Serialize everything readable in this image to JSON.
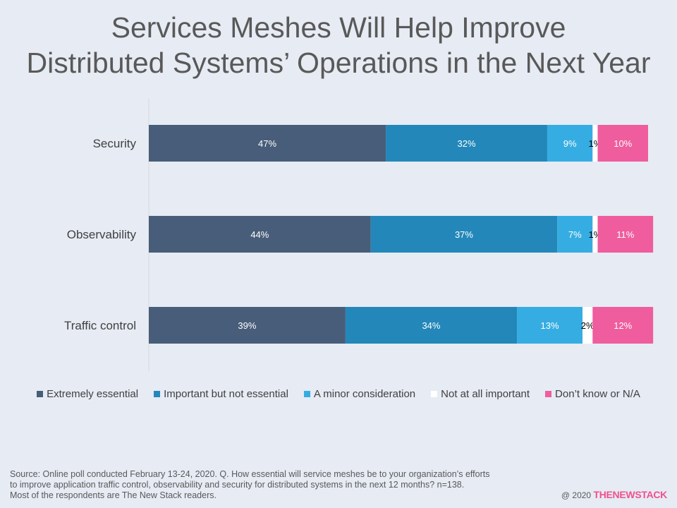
{
  "chart_data": {
    "type": "bar",
    "orientation": "horizontal",
    "stacked": true,
    "title_lines": [
      "Services Meshes Will Help Improve",
      "Distributed Systems’ Operations in the Next Year"
    ],
    "categories": [
      "Security",
      "Observability",
      "Traffic control"
    ],
    "series": [
      {
        "name": "Extremely essential",
        "color": "#485d79",
        "label_color": "#ffffff",
        "values": [
          47,
          44,
          39
        ]
      },
      {
        "name": "Important but not essential",
        "color": "#2387b9",
        "label_color": "#ffffff",
        "values": [
          32,
          37,
          34
        ]
      },
      {
        "name": "A minor consideration",
        "color": "#36ade2",
        "label_color": "#ffffff",
        "values": [
          9,
          7,
          13
        ]
      },
      {
        "name": "Not at all important",
        "color": "#ffffff",
        "label_color": "#000000",
        "values": [
          1,
          1,
          2
        ]
      },
      {
        "name": "Don’t know or N/A",
        "color": "#ef5d9e",
        "label_color": "#ffffff",
        "values": [
          10,
          11,
          12
        ]
      }
    ],
    "value_suffix": "%",
    "xlim": [
      0,
      99
    ],
    "grid": false,
    "legend_position": "bottom"
  },
  "source_lines": [
    "Source: Online poll conducted February 13-24, 2020. Q. How essential will service meshes be to your organization’s efforts",
    "to improve application traffic control, observability and security for distributed systems in the next 12 months? n=138.",
    "Most of the respondents are The New Stack readers."
  ],
  "copyright": "@ 2020",
  "brand": "THENEWSTACK"
}
